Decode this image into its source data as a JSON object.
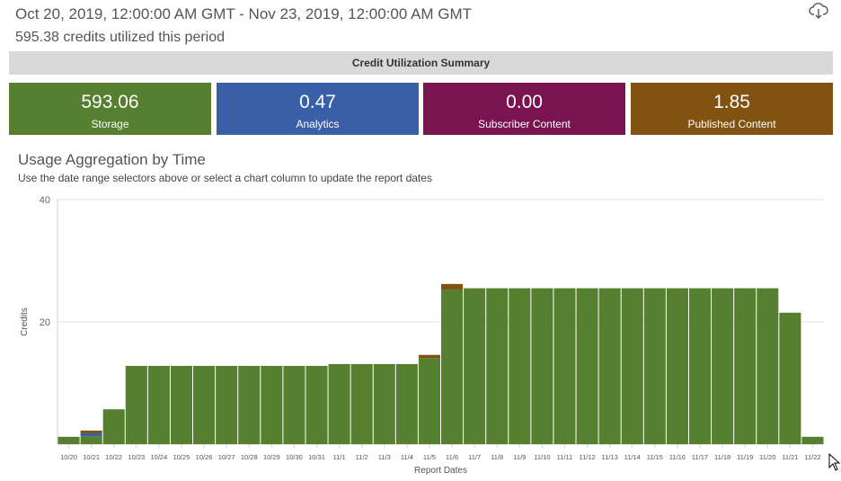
{
  "header": {
    "date_range": "Oct 20, 2019, 12:00:00 AM GMT - Nov 23, 2019, 12:00:00 AM GMT",
    "credits_utilized": "595.38 credits utilized this period",
    "download_icon": "cloud-download-icon"
  },
  "summary": {
    "title": "Credit Utilization Summary",
    "tiles": [
      {
        "value": "593.06",
        "label": "Storage",
        "color": "#56802f"
      },
      {
        "value": "0.47",
        "label": "Analytics",
        "color": "#3a5fa9"
      },
      {
        "value": "0.00",
        "label": "Subscriber Content",
        "color": "#7a1451"
      },
      {
        "value": "1.85",
        "label": "Published Content",
        "color": "#815211"
      }
    ]
  },
  "chart_section": {
    "title": "Usage Aggregation by Time",
    "subtitle": "Use the date range selectors above or select a chart column to update the report dates"
  },
  "chart_data": {
    "type": "bar",
    "stacked": true,
    "xlabel": "Report Dates",
    "ylabel": "Credits",
    "ylim": [
      0,
      40
    ],
    "yticks": [
      20,
      40
    ],
    "grid": true,
    "colors": {
      "storage": "#56802f",
      "analytics": "#3a5fa9",
      "published": "#815211"
    },
    "categories": [
      "10/20",
      "10/21",
      "10/22",
      "10/23",
      "10/24",
      "10/25",
      "10/26",
      "10/27",
      "10/28",
      "10/29",
      "10/30",
      "10/31",
      "11/1",
      "11/2",
      "11/3",
      "11/4",
      "11/5",
      "11/6",
      "11/7",
      "11/8",
      "11/9",
      "11/10",
      "11/11",
      "11/12",
      "11/13",
      "11/14",
      "11/15",
      "11/16",
      "11/17",
      "11/18",
      "11/19",
      "11/20",
      "11/21",
      "11/22"
    ],
    "series": [
      {
        "name": "Storage",
        "values": [
          1.2,
          1.3,
          5.7,
          12.8,
          12.8,
          12.8,
          12.8,
          12.8,
          12.8,
          12.8,
          12.8,
          12.8,
          13.1,
          13.1,
          13.1,
          13.1,
          14.1,
          25.3,
          25.5,
          25.5,
          25.5,
          25.5,
          25.5,
          25.5,
          25.5,
          25.5,
          25.5,
          25.5,
          25.5,
          25.5,
          25.5,
          25.5,
          21.5,
          1.2
        ]
      },
      {
        "name": "Analytics",
        "values": [
          0,
          0.47,
          0,
          0,
          0,
          0,
          0,
          0,
          0,
          0,
          0,
          0,
          0,
          0,
          0,
          0,
          0,
          0,
          0,
          0,
          0,
          0,
          0,
          0,
          0,
          0,
          0,
          0,
          0,
          0,
          0,
          0,
          0,
          0
        ]
      },
      {
        "name": "Published Content",
        "values": [
          0,
          0.45,
          0,
          0,
          0,
          0,
          0,
          0,
          0,
          0,
          0,
          0,
          0,
          0,
          0,
          0,
          0.5,
          0.9,
          0,
          0,
          0,
          0,
          0,
          0,
          0,
          0,
          0,
          0,
          0,
          0,
          0,
          0,
          0,
          0
        ]
      }
    ]
  }
}
